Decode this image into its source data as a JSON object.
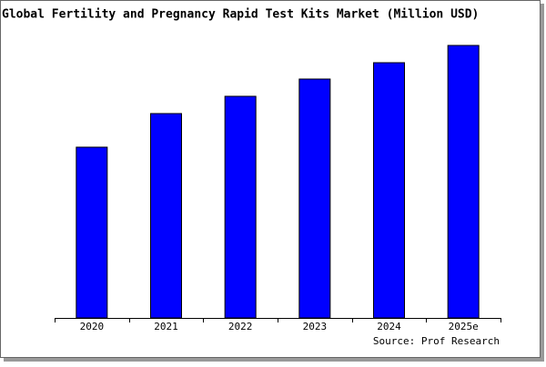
{
  "chart_data": {
    "type": "bar",
    "title": "Global Fertility and Pregnancy Rapid Test Kits Market (Million USD)",
    "source": "Source: Prof Research",
    "categories": [
      "2020",
      "2021",
      "2022",
      "2023",
      "2024",
      "2025e"
    ],
    "values": [
      188,
      225,
      244,
      263,
      281,
      300
    ],
    "color": "#0000ff",
    "ylim": [
      0,
      300
    ]
  }
}
